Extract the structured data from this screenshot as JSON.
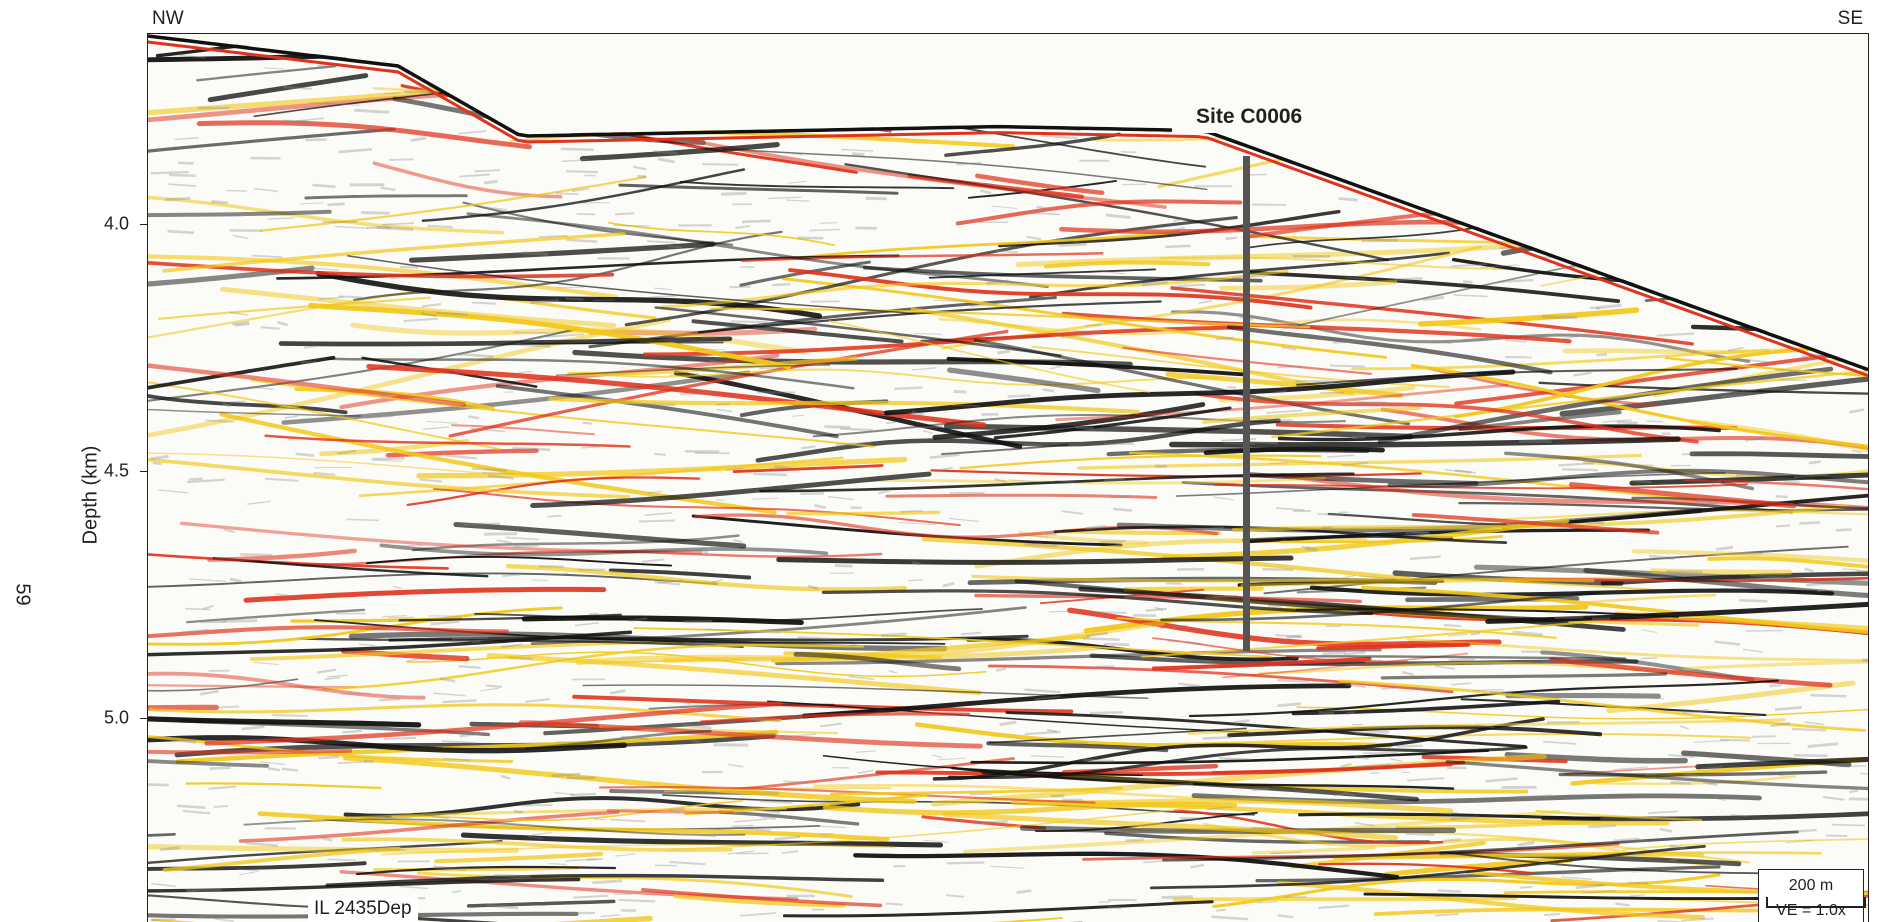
{
  "orientation": {
    "left": "NW",
    "right": "SE"
  },
  "page_number": "59",
  "axis": {
    "ylabel": "Depth (km)",
    "ticks": [
      "4.0",
      "4.5",
      "5.0"
    ]
  },
  "annotations": {
    "site": "Site C0006",
    "inline": "IL 2435Dep",
    "scale": "200 m",
    "vertical_exaggeration": "VE = 1.0x"
  },
  "colors": {
    "frame": "#231f20",
    "positive_amplitude": "#e0321c",
    "secondary_amplitude": "#f2c81a",
    "negative_amplitude": "#111111",
    "background": "#fbfbf8",
    "borehole": "#555555"
  }
}
